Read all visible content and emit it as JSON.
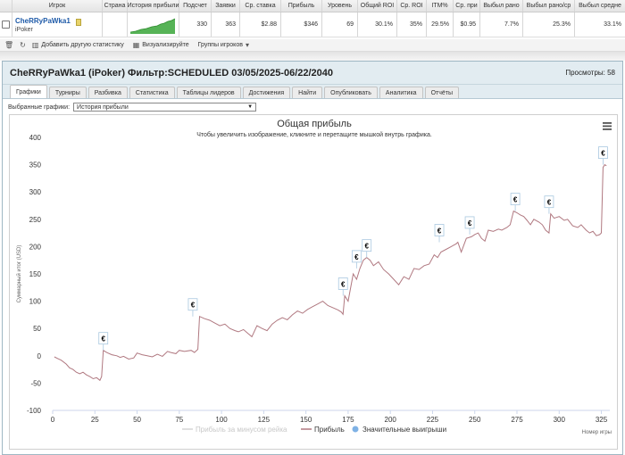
{
  "stats_table": {
    "headers": [
      "",
      "Игрок",
      "Страна",
      "История прибыли",
      "Подсчет",
      "Заявки",
      "Ср. ставка",
      "Прибыль",
      "Уровень",
      "Общий ROI",
      "Ср. ROI",
      "ITM%",
      "Ср. при",
      "Выбыл рано",
      "Выбыл рано/ср",
      "Выбыл средне"
    ],
    "row": {
      "player": "CheRRyPaWka1",
      "site": "iPoker",
      "count": "330",
      "entries": "363",
      "avg_stake": "$2.88",
      "profit": "$346",
      "level": "69",
      "total_roi": "30.1%",
      "avg_roi": "35%",
      "itm": "29.5%",
      "avg_prize": "$0.95",
      "early_out": "7.7%",
      "early_out_avg": "25.3%",
      "mid_out": "33.1%"
    }
  },
  "toolbar": {
    "add_stats": "Добавить другую статистику",
    "visualize": "Визуализируйте",
    "player_groups": "Группы игроков"
  },
  "panel": {
    "title": "CheRRyPaWka1 (iPoker) Фильтр:SCHEDULED 03/05/2025-06/22/2040",
    "views": "Просмотры: 58",
    "tabs": [
      "Графики",
      "Турниры",
      "Разбивка",
      "Статистика",
      "Таблицы лидеров",
      "Достижения",
      "Найти",
      "Опубликовать",
      "Аналитика",
      "Отчёты"
    ],
    "active_tab": 0,
    "select_label": "Выбранные графики:",
    "select_value": "История прибыли"
  },
  "chart_data": {
    "type": "line",
    "title": "Общая прибыль",
    "subtitle": "Чтобы увеличить изображение, кликните и перетащите мышкой внутрь графика.",
    "xlabel": "Номер игры",
    "ylabel": "Суммарный итог (USD)",
    "xlim": [
      0,
      330
    ],
    "ylim": [
      -100,
      400
    ],
    "x_ticks": [
      0,
      25,
      50,
      75,
      100,
      125,
      150,
      175,
      200,
      225,
      250,
      275,
      300,
      325
    ],
    "y_ticks": [
      -100,
      -50,
      0,
      50,
      100,
      150,
      200,
      250,
      300,
      350,
      400
    ],
    "grid": false,
    "legend_position": "bottom",
    "legend": [
      "Прибыль за минусом рейка",
      "Прибыль",
      "Значительные выигрыши"
    ],
    "colors": {
      "profit": "#b07880",
      "rake": "#d6d6d6",
      "big_win": "#7fb2e5"
    },
    "series": [
      {
        "name": "Прибыль",
        "points": [
          [
            1,
            -2
          ],
          [
            3,
            -5
          ],
          [
            5,
            -8
          ],
          [
            8,
            -15
          ],
          [
            10,
            -22
          ],
          [
            12,
            -25
          ],
          [
            14,
            -30
          ],
          [
            16,
            -33
          ],
          [
            18,
            -30
          ],
          [
            20,
            -35
          ],
          [
            22,
            -38
          ],
          [
            24,
            -42
          ],
          [
            26,
            -40
          ],
          [
            28,
            -45
          ],
          [
            29,
            -38
          ],
          [
            30,
            10
          ],
          [
            32,
            6
          ],
          [
            35,
            2
          ],
          [
            38,
            0
          ],
          [
            40,
            -3
          ],
          [
            42,
            -1
          ],
          [
            45,
            -6
          ],
          [
            48,
            -4
          ],
          [
            50,
            5
          ],
          [
            53,
            2
          ],
          [
            56,
            0
          ],
          [
            59,
            -2
          ],
          [
            62,
            3
          ],
          [
            65,
            -1
          ],
          [
            68,
            8
          ],
          [
            70,
            6
          ],
          [
            73,
            4
          ],
          [
            75,
            10
          ],
          [
            78,
            8
          ],
          [
            82,
            10
          ],
          [
            84,
            6
          ],
          [
            86,
            12
          ],
          [
            87,
            72
          ],
          [
            90,
            68
          ],
          [
            93,
            65
          ],
          [
            96,
            60
          ],
          [
            99,
            55
          ],
          [
            102,
            58
          ],
          [
            105,
            50
          ],
          [
            108,
            46
          ],
          [
            110,
            44
          ],
          [
            113,
            48
          ],
          [
            116,
            40
          ],
          [
            118,
            35
          ],
          [
            121,
            55
          ],
          [
            124,
            50
          ],
          [
            127,
            46
          ],
          [
            130,
            58
          ],
          [
            133,
            65
          ],
          [
            136,
            70
          ],
          [
            139,
            66
          ],
          [
            142,
            75
          ],
          [
            145,
            82
          ],
          [
            148,
            78
          ],
          [
            151,
            85
          ],
          [
            154,
            90
          ],
          [
            157,
            95
          ],
          [
            160,
            100
          ],
          [
            163,
            92
          ],
          [
            166,
            88
          ],
          [
            169,
            84
          ],
          [
            171,
            80
          ],
          [
            172,
            76
          ],
          [
            173,
            110
          ],
          [
            175,
            100
          ],
          [
            178,
            150
          ],
          [
            180,
            140
          ],
          [
            182,
            160
          ],
          [
            184,
            175
          ],
          [
            186,
            180
          ],
          [
            188,
            175
          ],
          [
            190,
            165
          ],
          [
            193,
            172
          ],
          [
            196,
            158
          ],
          [
            199,
            150
          ],
          [
            202,
            140
          ],
          [
            205,
            130
          ],
          [
            208,
            145
          ],
          [
            211,
            140
          ],
          [
            214,
            160
          ],
          [
            217,
            158
          ],
          [
            220,
            165
          ],
          [
            223,
            168
          ],
          [
            226,
            185
          ],
          [
            228,
            180
          ],
          [
            230,
            190
          ],
          [
            233,
            195
          ],
          [
            236,
            200
          ],
          [
            239,
            205
          ],
          [
            240,
            208
          ],
          [
            242,
            190
          ],
          [
            245,
            215
          ],
          [
            248,
            218
          ],
          [
            250,
            222
          ],
          [
            252,
            225
          ],
          [
            254,
            215
          ],
          [
            256,
            210
          ],
          [
            258,
            230
          ],
          [
            261,
            228
          ],
          [
            264,
            232
          ],
          [
            266,
            230
          ],
          [
            269,
            235
          ],
          [
            271,
            240
          ],
          [
            273,
            265
          ],
          [
            275,
            262
          ],
          [
            277,
            258
          ],
          [
            279,
            255
          ],
          [
            281,
            248
          ],
          [
            283,
            240
          ],
          [
            285,
            250
          ],
          [
            288,
            245
          ],
          [
            290,
            240
          ],
          [
            292,
            230
          ],
          [
            294,
            225
          ],
          [
            295,
            260
          ],
          [
            297,
            252
          ],
          [
            300,
            255
          ],
          [
            303,
            248
          ],
          [
            305,
            250
          ],
          [
            308,
            238
          ],
          [
            311,
            235
          ],
          [
            313,
            240
          ],
          [
            316,
            230
          ],
          [
            318,
            225
          ],
          [
            320,
            228
          ],
          [
            322,
            220
          ],
          [
            324,
            222
          ],
          [
            325,
            225
          ],
          [
            326,
            345
          ],
          [
            327,
            350
          ],
          [
            328,
            348
          ]
        ]
      }
    ],
    "big_wins": [
      {
        "x": 30,
        "y": 10,
        "label": "€"
      },
      {
        "x": 83,
        "y": 72,
        "label": "€"
      },
      {
        "x": 172,
        "y": 110,
        "label": "€"
      },
      {
        "x": 180,
        "y": 160,
        "label": "€"
      },
      {
        "x": 186,
        "y": 180,
        "label": "€"
      },
      {
        "x": 229,
        "y": 208,
        "label": "€"
      },
      {
        "x": 247,
        "y": 222,
        "label": "€"
      },
      {
        "x": 274,
        "y": 265,
        "label": "€"
      },
      {
        "x": 294,
        "y": 260,
        "label": "€"
      },
      {
        "x": 326,
        "y": 350,
        "label": "€"
      }
    ]
  }
}
